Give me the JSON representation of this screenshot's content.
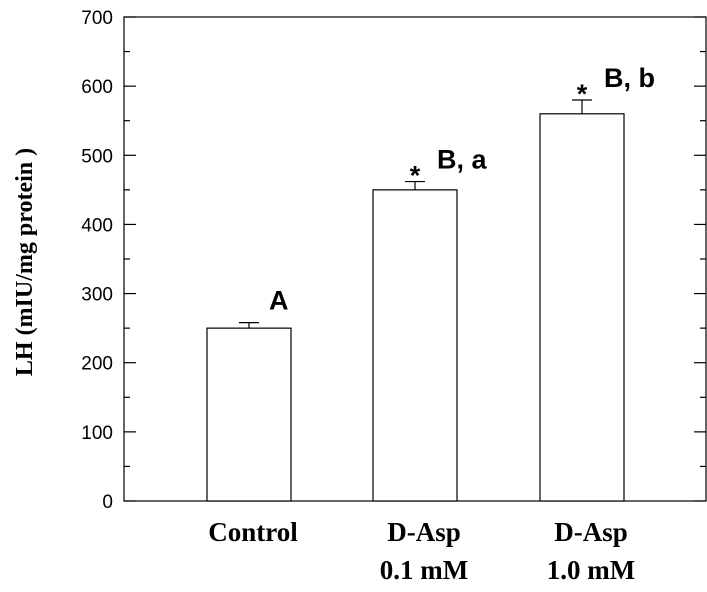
{
  "chart_data": {
    "type": "bar",
    "ylabel": "LH (mIU/mg protein )",
    "ylim": [
      0,
      700
    ],
    "yticks": [
      "0",
      "100",
      "200",
      "300",
      "400",
      "500",
      "600",
      "700"
    ],
    "grid": false,
    "categories": [
      {
        "lines": [
          "Control"
        ]
      },
      {
        "lines": [
          "D-Asp",
          "0.1 mM"
        ]
      },
      {
        "lines": [
          "D-Asp",
          "1.0 mM"
        ]
      }
    ],
    "values": [
      250,
      450,
      560
    ],
    "errors": [
      8,
      12,
      20
    ],
    "annotations": [
      {
        "star": "",
        "text": "A"
      },
      {
        "star": "*",
        "text": "B, a"
      },
      {
        "star": "*",
        "text": "B, b"
      }
    ],
    "bar_color": "#ffffff",
    "line_color": "#000000"
  }
}
